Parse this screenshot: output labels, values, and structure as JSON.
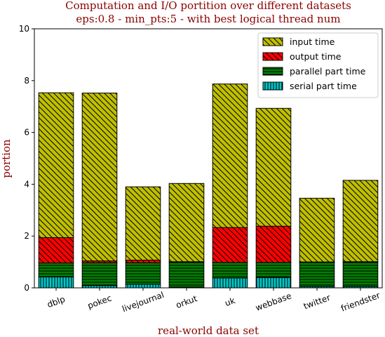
{
  "chart_data": {
    "type": "bar",
    "stacked": true,
    "title_line1": "Computation and I/O portition over different datasets",
    "title_line2": "eps:0.8 - min_pts:5 - with best logical thread num",
    "xlabel": "real-world data set",
    "ylabel": "portion",
    "ylim": [
      0,
      10
    ],
    "yticks": [
      0,
      2,
      4,
      6,
      8,
      10
    ],
    "categories": [
      "dblp",
      "pokec",
      "livejournal",
      "orkut",
      "uk",
      "webbase",
      "twitter",
      "friendster"
    ],
    "series": [
      {
        "name": "serial part time",
        "color": "#00c8c8",
        "hatch": "vertical",
        "values": [
          0.42,
          0.09,
          0.14,
          0.03,
          0.38,
          0.4,
          0.05,
          0.05
        ]
      },
      {
        "name": "parallel part time",
        "color": "#008000",
        "hatch": "horizontal",
        "values": [
          0.54,
          0.88,
          0.83,
          0.95,
          0.6,
          0.58,
          0.93,
          0.93
        ]
      },
      {
        "name": "output time",
        "color": "#ff0000",
        "hatch": "diagonal",
        "values": [
          0.98,
          0.07,
          0.1,
          0.03,
          1.35,
          1.4,
          0.02,
          0.03
        ]
      },
      {
        "name": "input time",
        "color": "#bfbf00",
        "hatch": "diagonal",
        "values": [
          5.59,
          6.48,
          2.83,
          3.02,
          5.54,
          4.55,
          2.46,
          3.14
        ]
      }
    ],
    "legend_order": [
      "input time",
      "output time",
      "parallel part time",
      "serial part time"
    ],
    "legend_position": "top-right",
    "grid": false
  }
}
